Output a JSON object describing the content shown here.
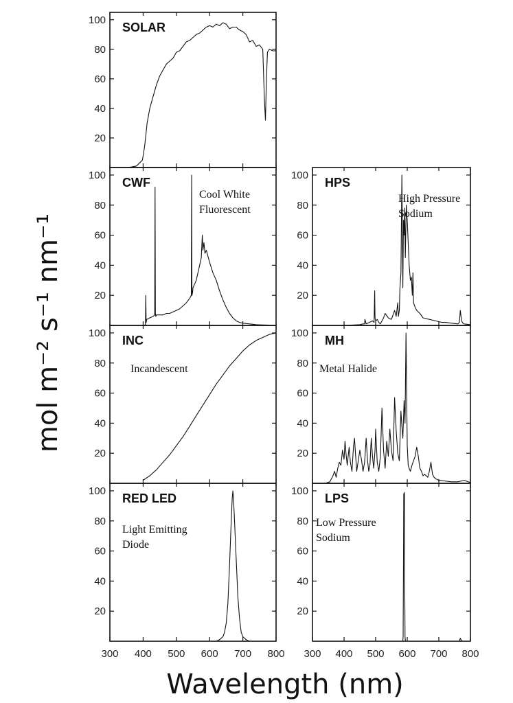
{
  "figure": {
    "ylabel": "mol m⁻² s⁻¹ nm⁻¹",
    "xlabel": "Wavelength (nm)"
  },
  "chart_data": [
    {
      "id": "solar",
      "type": "line",
      "title": "SOLAR",
      "subtitle": [],
      "xlim": [
        300,
        800
      ],
      "ylim": [
        0,
        105
      ],
      "yticks": [
        20,
        40,
        60,
        80,
        100
      ],
      "xticks": [],
      "series": [
        {
          "x": [
            355,
            380,
            398,
            405,
            412,
            420,
            430,
            440,
            450,
            460,
            470,
            480,
            490,
            500,
            510,
            520,
            530,
            540,
            550,
            560,
            570,
            580,
            590,
            600,
            610,
            620,
            630,
            640,
            650,
            660,
            670,
            680,
            690,
            700,
            710,
            720,
            730,
            740,
            750,
            760,
            765,
            768,
            771,
            774,
            780,
            790,
            800
          ],
          "y": [
            0,
            1,
            5,
            15,
            30,
            40,
            48,
            56,
            62,
            66,
            70,
            72,
            74,
            78,
            79,
            82,
            85,
            86,
            88,
            90,
            91,
            93,
            95,
            96,
            95,
            97,
            96,
            98,
            97,
            94,
            95,
            95,
            93,
            92,
            90,
            85,
            86,
            82,
            83,
            80,
            45,
            32,
            60,
            78,
            80,
            79,
            79
          ]
        }
      ]
    },
    {
      "id": "cwf",
      "type": "line",
      "title": "CWF",
      "subtitle": [
        "Cool White",
        "Fluorescent"
      ],
      "xlim": [
        300,
        800
      ],
      "ylim": [
        0,
        105
      ],
      "yticks": [
        20,
        40,
        60,
        80,
        100
      ],
      "xticks": [],
      "series": [
        {
          "x": [
            405,
            407,
            408,
            409,
            411,
            420,
            430,
            435,
            436,
            437,
            438,
            440,
            450,
            460,
            470,
            480,
            490,
            500,
            510,
            520,
            530,
            540,
            545,
            546,
            547,
            549,
            550,
            560,
            570,
            575,
            578,
            580,
            583,
            586,
            590,
            600,
            610,
            620,
            630,
            640,
            650,
            660,
            670,
            680,
            690,
            700,
            720,
            740,
            760,
            780,
            800
          ],
          "y": [
            0,
            1,
            20,
            2,
            4,
            5,
            6,
            7,
            92,
            8,
            6,
            7,
            7,
            7,
            8,
            8,
            9,
            10,
            11,
            13,
            15,
            18,
            20,
            100,
            20,
            22,
            25,
            30,
            40,
            45,
            60,
            50,
            55,
            48,
            50,
            42,
            35,
            30,
            23,
            17,
            12,
            8,
            5,
            3,
            2,
            1.5,
            1,
            0.5,
            0.3,
            0.2,
            0
          ]
        }
      ]
    },
    {
      "id": "hps",
      "type": "line",
      "title": "HPS",
      "subtitle": [
        "High Pressure",
        "Sodium"
      ],
      "xlim": [
        300,
        800
      ],
      "ylim": [
        0,
        105
      ],
      "yticks": [
        20,
        40,
        60,
        80,
        100
      ],
      "xticks": [],
      "series": [
        {
          "x": [
            300,
            400,
            450,
            460,
            465,
            466,
            470,
            480,
            490,
            495,
            497,
            498,
            500,
            505,
            510,
            515,
            520,
            525,
            530,
            540,
            550,
            560,
            565,
            570,
            572,
            575,
            577,
            580,
            583,
            586,
            588,
            590,
            592,
            594,
            597,
            600,
            603,
            606,
            610,
            613,
            616,
            618,
            620,
            625,
            630,
            640,
            650,
            670,
            690,
            710,
            720,
            740,
            760,
            765,
            768,
            772,
            776,
            780,
            800
          ],
          "y": [
            0,
            0,
            0.5,
            1,
            1,
            4,
            1,
            2,
            3,
            2,
            23,
            5,
            3,
            4,
            2,
            1,
            3,
            5,
            8,
            5,
            4,
            10,
            6,
            15,
            6,
            10,
            25,
            35,
            100,
            25,
            70,
            60,
            78,
            45,
            80,
            70,
            55,
            40,
            30,
            32,
            20,
            35,
            15,
            12,
            10,
            8,
            5,
            4,
            3,
            2,
            2,
            1.5,
            1,
            2,
            10,
            3,
            1.5,
            1,
            0.5
          ]
        }
      ]
    },
    {
      "id": "inc",
      "type": "line",
      "title": "INC",
      "subtitle": [
        "Incandescent"
      ],
      "xlim": [
        300,
        800
      ],
      "ylim": [
        0,
        105
      ],
      "yticks": [
        20,
        40,
        60,
        80,
        100
      ],
      "xticks": [],
      "series": [
        {
          "x": [
            400,
            420,
            440,
            460,
            480,
            500,
            520,
            540,
            560,
            580,
            600,
            620,
            640,
            660,
            680,
            700,
            720,
            740,
            760,
            780,
            800
          ],
          "y": [
            2,
            5,
            9,
            14,
            19,
            25,
            31,
            38,
            45,
            52,
            59,
            66,
            72,
            78,
            83,
            88,
            92,
            95,
            97,
            99,
            100
          ]
        }
      ]
    },
    {
      "id": "mh",
      "type": "line",
      "title": "MH",
      "subtitle": [
        "Metal Halide"
      ],
      "xlim": [
        300,
        800
      ],
      "ylim": [
        0,
        105
      ],
      "yticks": [
        20,
        40,
        60,
        80,
        100
      ],
      "xticks": [],
      "series": [
        {
          "x": [
            300,
            340,
            355,
            360,
            365,
            370,
            375,
            380,
            385,
            390,
            395,
            400,
            403,
            406,
            410,
            413,
            416,
            420,
            425,
            430,
            433,
            436,
            440,
            445,
            450,
            455,
            460,
            465,
            470,
            474,
            478,
            482,
            486,
            490,
            494,
            498,
            500,
            505,
            510,
            515,
            520,
            525,
            530,
            535,
            540,
            545,
            550,
            555,
            560,
            565,
            570,
            575,
            580,
            583,
            586,
            590,
            593,
            596,
            600,
            603,
            606,
            610,
            615,
            620,
            625,
            630,
            635,
            640,
            645,
            650,
            655,
            660,
            665,
            670,
            675,
            680,
            685,
            690,
            700,
            720,
            740,
            760,
            780,
            800
          ],
          "y": [
            0,
            0,
            1,
            3,
            5,
            8,
            4,
            10,
            14,
            12,
            22,
            16,
            28,
            20,
            12,
            18,
            24,
            14,
            8,
            25,
            30,
            20,
            8,
            15,
            22,
            16,
            8,
            14,
            30,
            16,
            8,
            12,
            30,
            18,
            10,
            22,
            36,
            14,
            8,
            18,
            50,
            22,
            10,
            28,
            18,
            36,
            22,
            15,
            57,
            35,
            20,
            15,
            48,
            38,
            30,
            55,
            40,
            100,
            25,
            12,
            10,
            8,
            12,
            15,
            18,
            24,
            18,
            10,
            8,
            5,
            6,
            5,
            4,
            8,
            14,
            6,
            4,
            3,
            2,
            1.5,
            1,
            1,
            2,
            0.5
          ]
        }
      ]
    },
    {
      "id": "redled",
      "type": "line",
      "title": "RED LED",
      "subtitle": [
        "Light Emitting",
        "Diode"
      ],
      "xlim": [
        300,
        800
      ],
      "ylim": [
        0,
        105
      ],
      "yticks": [
        20,
        40,
        60,
        80,
        100
      ],
      "xticks": [
        300,
        400,
        500,
        600,
        700,
        800
      ],
      "series": [
        {
          "x": [
            620,
            630,
            640,
            645,
            650,
            655,
            660,
            665,
            668,
            670,
            672,
            675,
            680,
            685,
            690,
            695,
            700,
            710,
            720
          ],
          "y": [
            0,
            1,
            3,
            6,
            12,
            25,
            50,
            80,
            95,
            100,
            95,
            80,
            55,
            30,
            15,
            6,
            3,
            1,
            0
          ]
        }
      ]
    },
    {
      "id": "lps",
      "type": "line",
      "title": "LPS",
      "subtitle": [
        "Low Pressure",
        "Sodium"
      ],
      "xlim": [
        300,
        800
      ],
      "ylim": [
        0,
        105
      ],
      "yticks": [
        20,
        40,
        60,
        80,
        100
      ],
      "xticks": [
        300,
        400,
        500,
        600,
        700,
        800
      ],
      "series": [
        {
          "x": [
            300,
            580,
            586,
            587,
            588,
            589,
            590,
            591,
            592,
            593,
            594,
            595,
            600,
            760,
            765,
            768,
            771,
            775,
            800
          ],
          "y": [
            0,
            0,
            0,
            3,
            50,
            98,
            90,
            99,
            40,
            3,
            0.5,
            0,
            0,
            0,
            0,
            2,
            0.5,
            0,
            0
          ]
        }
      ]
    }
  ]
}
